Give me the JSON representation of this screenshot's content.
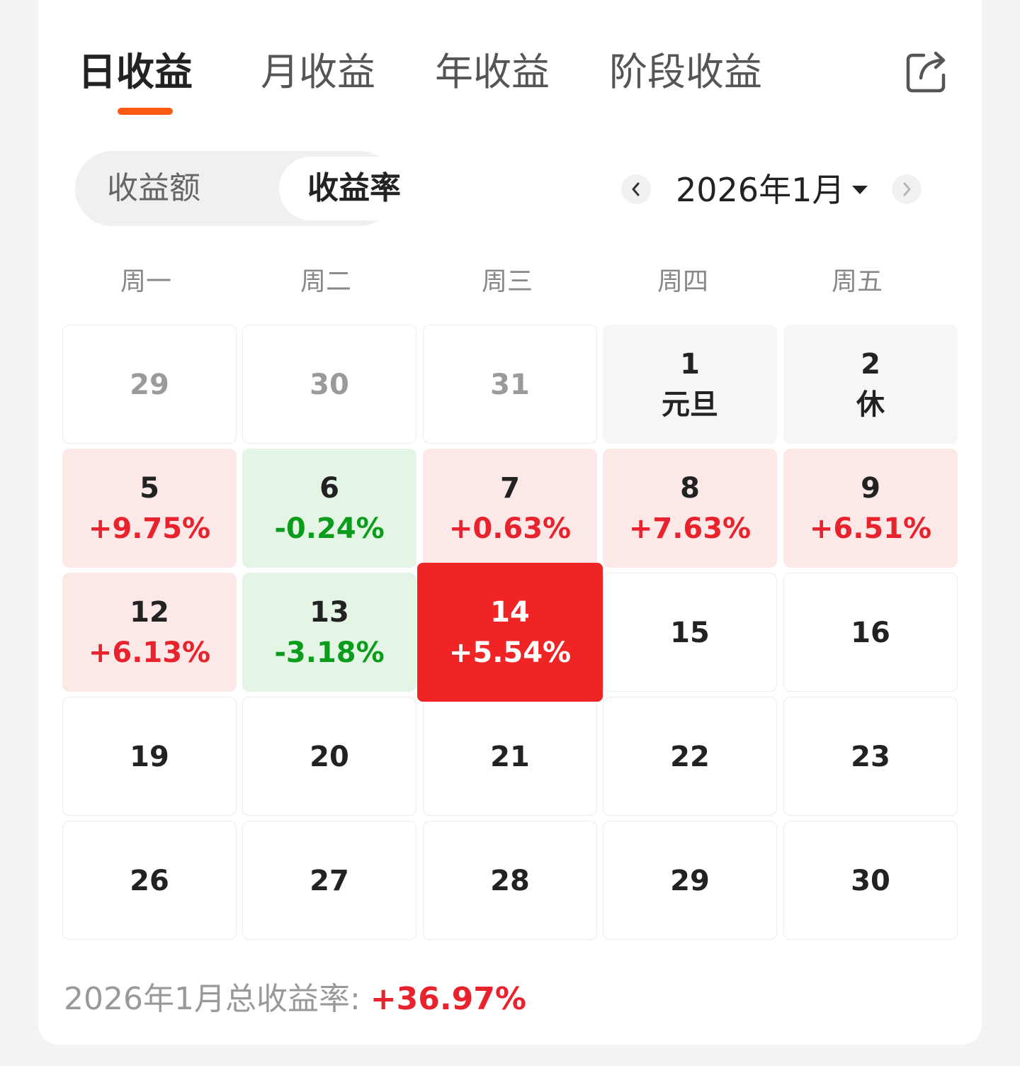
{
  "tabs": [
    {
      "label": "日收益",
      "active": true
    },
    {
      "label": "月收益",
      "active": false
    },
    {
      "label": "年收益",
      "active": false
    },
    {
      "label": "阶段收益",
      "active": false
    }
  ],
  "share_icon": "share-out-icon",
  "segment": {
    "options": [
      "收益额",
      "收益率"
    ],
    "selected": "收益率"
  },
  "month_nav": {
    "label": "2026年1月",
    "prev_icon": "chevron-left-icon",
    "next_icon": "chevron-right-icon",
    "dropdown_icon": "caret-down-icon"
  },
  "weekdays": [
    "周一",
    "周二",
    "周三",
    "周四",
    "周五"
  ],
  "colors": {
    "accent": "#fa5a14",
    "up": "#e8232d",
    "down": "#0a9c1a",
    "up_bg": "#fde8e8",
    "down_bg": "#e4f5e6",
    "today_bg": "#f02424"
  },
  "weeks": [
    [
      {
        "day": "29",
        "state": "muted"
      },
      {
        "day": "30",
        "state": "muted"
      },
      {
        "day": "31",
        "state": "muted"
      },
      {
        "day": "1",
        "note": "元旦",
        "state": "holiday"
      },
      {
        "day": "2",
        "note": "休",
        "state": "holiday"
      }
    ],
    [
      {
        "day": "5",
        "rate": "+9.75%",
        "state": "up"
      },
      {
        "day": "6",
        "rate": "-0.24%",
        "state": "down"
      },
      {
        "day": "7",
        "rate": "+0.63%",
        "state": "up"
      },
      {
        "day": "8",
        "rate": "+7.63%",
        "state": "up"
      },
      {
        "day": "9",
        "rate": "+6.51%",
        "state": "up"
      }
    ],
    [
      {
        "day": "12",
        "rate": "+6.13%",
        "state": "up"
      },
      {
        "day": "13",
        "rate": "-3.18%",
        "state": "down"
      },
      {
        "day": "14",
        "rate": "+5.54%",
        "state": "today"
      },
      {
        "day": "15",
        "state": "future"
      },
      {
        "day": "16",
        "state": "future"
      }
    ],
    [
      {
        "day": "19",
        "state": "future"
      },
      {
        "day": "20",
        "state": "future"
      },
      {
        "day": "21",
        "state": "future"
      },
      {
        "day": "22",
        "state": "future"
      },
      {
        "day": "23",
        "state": "future"
      }
    ],
    [
      {
        "day": "26",
        "state": "future"
      },
      {
        "day": "27",
        "state": "future"
      },
      {
        "day": "28",
        "state": "future"
      },
      {
        "day": "29",
        "state": "future"
      },
      {
        "day": "30",
        "state": "future"
      }
    ]
  ],
  "summary": {
    "label": "2026年1月总收益率: ",
    "value": "+36.97%"
  }
}
